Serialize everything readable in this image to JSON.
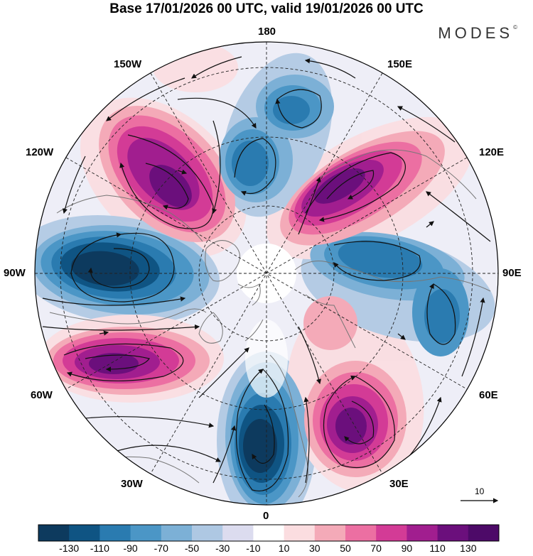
{
  "header": {
    "title": "Base 17/01/2026 00 UTC, valid 19/01/2026 00 UTC",
    "brand": "MODES",
    "brand_mark": "©"
  },
  "map": {
    "projection": "north-polar-stereographic",
    "longitude_labels": {
      "lon_180": "180",
      "lon_150e": "150E",
      "lon_120e": "120E",
      "lon_90e": "90E",
      "lon_60e": "60E",
      "lon_30e": "30E",
      "lon_0": "0",
      "lon_30w": "30W",
      "lon_60w": "60W",
      "lon_90w": "90W",
      "lon_120w": "120W",
      "lon_150w": "150W"
    },
    "vector_scale_label": "10"
  },
  "colorbar": {
    "tick_labels": [
      "-130",
      "-110",
      "-90",
      "-70",
      "-50",
      "-30",
      "-10",
      "10",
      "30",
      "50",
      "70",
      "90",
      "110",
      "130"
    ],
    "colors": [
      "#0d3a5e",
      "#0f5483",
      "#2a7bb0",
      "#4b96c6",
      "#7cb0d6",
      "#aec8e3",
      "#dcdcef",
      "#ffffff",
      "#fbdde0",
      "#f4aab8",
      "#ec6fa2",
      "#d33b96",
      "#a11e8f",
      "#6b0f7c",
      "#4d0a68"
    ]
  },
  "colors": {
    "background": "#ffffff",
    "coast": "#777777",
    "stream": "#111111"
  }
}
